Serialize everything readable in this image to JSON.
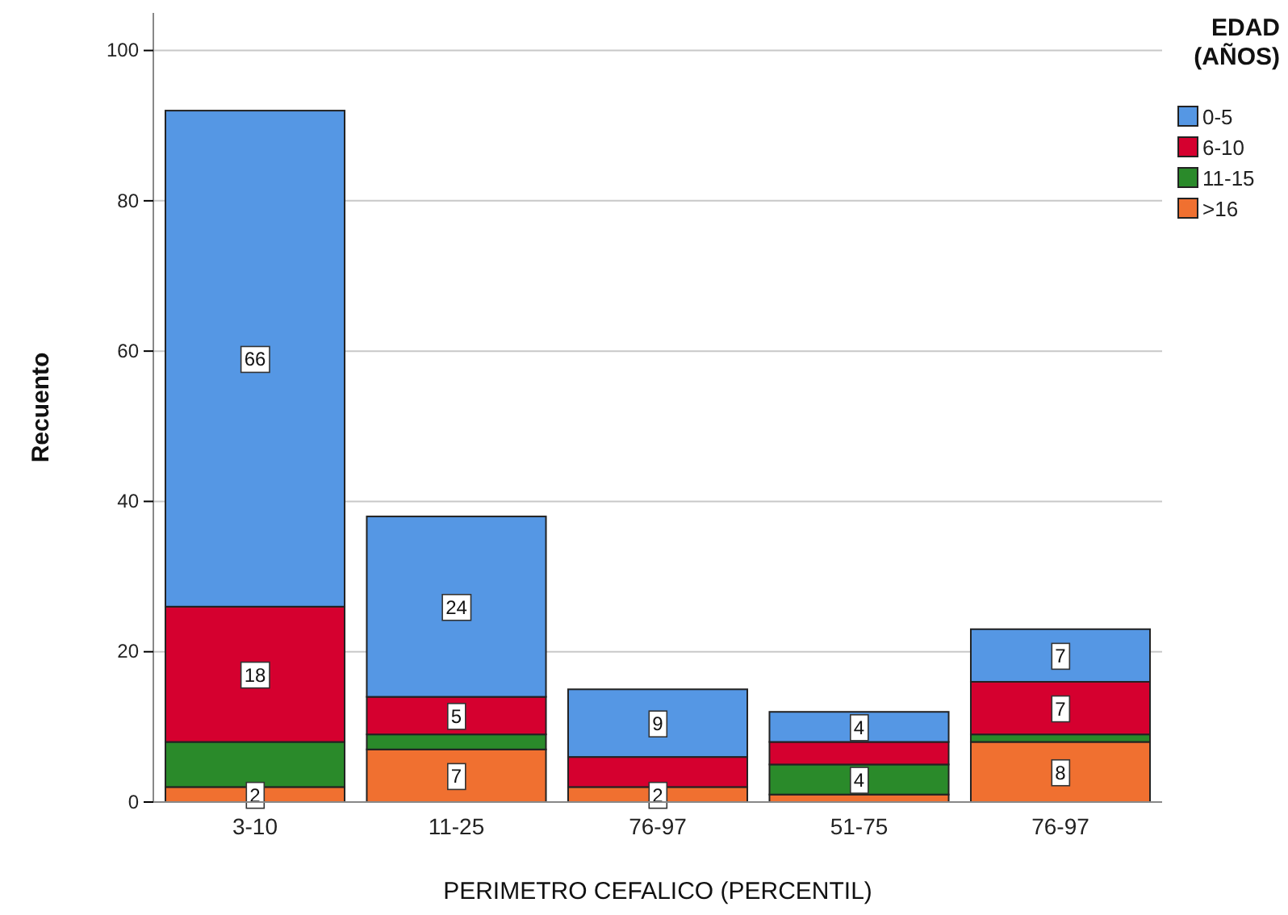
{
  "chart_data": {
    "type": "bar",
    "stacked": true,
    "xlabel": "PERIMETRO CEFALICO (PERCENTIL)",
    "ylabel": "Recuento",
    "legend_title": "EDAD (AÑOS)",
    "legend": "right",
    "grid": "y",
    "categories": [
      "3-10",
      "11-25",
      "76-97",
      "51-75",
      "76-97"
    ],
    "ylim": [
      0,
      105
    ],
    "yticks": [
      0,
      20,
      40,
      60,
      80,
      100
    ],
    "series": [
      {
        "name": ">16",
        "color": "#f07030",
        "values": [
          2,
          7,
          2,
          1,
          8
        ],
        "value_labels": [
          "2",
          "7",
          "2",
          null,
          "8"
        ]
      },
      {
        "name": "11-15",
        "color": "#2a8a2a",
        "values": [
          6,
          2,
          null,
          4,
          1
        ],
        "value_labels": [
          null,
          null,
          null,
          "4",
          null
        ]
      },
      {
        "name": "6-10",
        "color": "#d5002f",
        "values": [
          18,
          5,
          4,
          3,
          7
        ],
        "value_labels": [
          "18",
          "5",
          null,
          null,
          "7"
        ]
      },
      {
        "name": "0-5",
        "color": "#5597e4",
        "values": [
          66,
          24,
          9,
          4,
          7
        ],
        "value_labels": [
          "66",
          "24",
          "9",
          "4",
          "7"
        ]
      }
    ]
  }
}
